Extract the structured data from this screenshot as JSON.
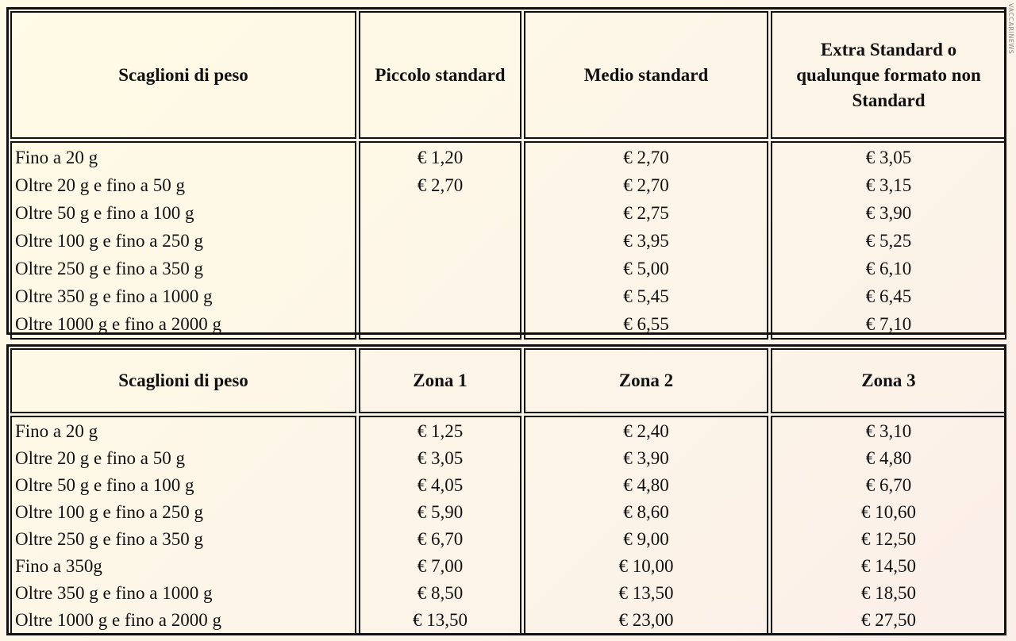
{
  "watermark": "VACCARINEWS",
  "table1": {
    "headers": [
      "Scaglioni di peso",
      "Piccolo standard",
      "Medio standard",
      "Extra Standard o qualunque formato non Standard"
    ],
    "rows": [
      [
        "Fino a 20 g",
        "€ 1,20",
        "€ 2,70",
        "€ 3,05"
      ],
      [
        "Oltre 20 g e fino a 50 g",
        "€ 2,70",
        "€ 2,70",
        "€ 3,15"
      ],
      [
        "Oltre 50 g e fino a 100 g",
        "",
        "€ 2,75",
        "€ 3,90"
      ],
      [
        "Oltre 100 g e fino a 250 g",
        "",
        "€ 3,95",
        "€ 5,25"
      ],
      [
        "Oltre 250 g e fino a 350 g",
        "",
        "€ 5,00",
        "€ 6,10"
      ],
      [
        "Oltre 350 g e fino a 1000 g",
        "",
        "€ 5,45",
        "€ 6,45"
      ],
      [
        "Oltre 1000 g e fino a 2000 g",
        "",
        "€ 6,55",
        "€ 7,10"
      ]
    ]
  },
  "table2": {
    "headers": [
      "Scaglioni di peso",
      "Zona 1",
      "Zona 2",
      "Zona 3"
    ],
    "rows": [
      [
        "Fino a 20 g",
        "€ 1,25",
        "€ 2,40",
        "€ 3,10"
      ],
      [
        "Oltre 20 g e fino a 50 g",
        "€ 3,05",
        "€ 3,90",
        "€ 4,80"
      ],
      [
        "Oltre 50 g e fino a 100 g",
        "€ 4,05",
        "€ 4,80",
        "€ 6,70"
      ],
      [
        "Oltre 100 g e fino a 250 g",
        "€ 5,90",
        "€ 8,60",
        "€ 10,60"
      ],
      [
        "Oltre 250 g e fino a 350 g",
        "€ 6,70",
        "€ 9,00",
        "€ 12,50"
      ],
      [
        "Fino a 350g",
        "€ 7,00",
        "€ 10,00",
        "€ 14,50"
      ],
      [
        "Oltre 350 g e fino a 1000 g",
        "€ 8,50",
        "€ 13,50",
        "€ 18,50"
      ],
      [
        "Oltre 1000 g e fino a 2000 g",
        "€ 13,50",
        "€ 23,00",
        "€ 27,50"
      ]
    ]
  }
}
